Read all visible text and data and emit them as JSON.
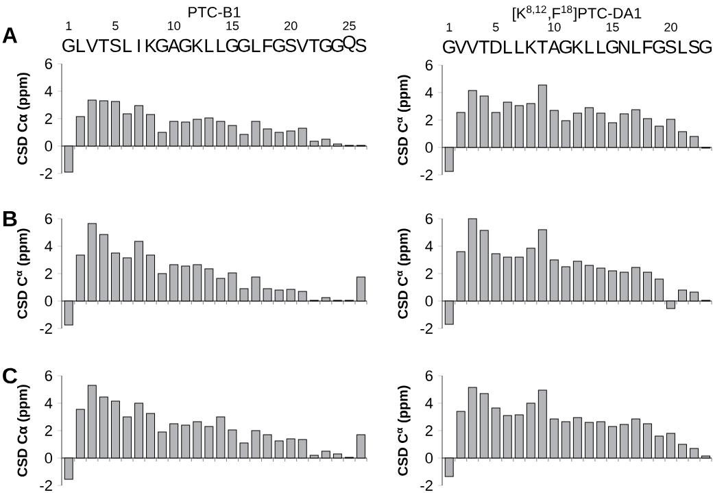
{
  "chart_data": [
    {
      "type": "bar",
      "title": "PTC-B1",
      "ylabel": "CSD Cα (ppm)",
      "annotations": [
        "A"
      ],
      "color": "#b4b5b9",
      "categories": [
        "G",
        "L",
        "V",
        "T",
        "S",
        "L",
        "I",
        "K",
        "G",
        "A",
        "G",
        "K",
        "L",
        "L",
        "G",
        "G",
        "L",
        "F",
        "G",
        "S",
        "V",
        "T",
        "G",
        "G",
        "Q",
        "S"
      ],
      "values": [
        -1.9,
        2.15,
        3.35,
        3.3,
        3.25,
        2.35,
        2.95,
        2.3,
        1.0,
        1.8,
        1.75,
        1.95,
        2.05,
        1.8,
        1.5,
        0.85,
        1.8,
        1.25,
        1.0,
        1.1,
        1.3,
        0.35,
        0.5,
        0.15,
        0.05,
        0.05
      ],
      "ylim": [
        -2,
        6
      ],
      "yticks": [
        -2,
        0,
        2,
        4,
        6
      ],
      "x2lim": [
        0.4,
        26.5
      ],
      "x2ticks": [
        1,
        5,
        10,
        15,
        20,
        25
      ]
    },
    {
      "type": "bar",
      "title": "[K$^{8,12}$,F$^{18}$]PTC-DA1",
      "ylabel": "CSD C$^{α}$ (ppm)",
      "color": "#b4b5b9",
      "categories": [
        "G",
        "V",
        "V",
        "T",
        "D",
        "L",
        "L",
        "K",
        "T",
        "A",
        "G",
        "K",
        "L",
        "L",
        "G",
        "N",
        "L",
        "F",
        "G",
        "S",
        "L",
        "S",
        "G"
      ],
      "values": [
        -1.75,
        2.55,
        4.15,
        3.75,
        2.55,
        3.3,
        3.05,
        3.2,
        4.55,
        2.7,
        1.95,
        2.5,
        2.9,
        2.5,
        1.8,
        2.45,
        2.75,
        2.1,
        1.55,
        2.05,
        1.15,
        0.8,
        -0.05
      ],
      "ylim": [
        -2,
        6
      ],
      "yticks": [
        -2,
        0,
        2,
        4,
        6
      ],
      "x2lim": [
        0.4,
        23.5
      ],
      "x2ticks": [
        1,
        5,
        10,
        15,
        20
      ]
    },
    {
      "type": "bar",
      "ylabel": "CSD C$^{α}$ (ppm)",
      "annotations": [
        "B"
      ],
      "color": "#b4b5b9",
      "tick_labels": "y",
      "categories": [
        null,
        null,
        null,
        null,
        null,
        null,
        null,
        null,
        null,
        null,
        null,
        null,
        null,
        null,
        null,
        null,
        null,
        null,
        null,
        null,
        null,
        null,
        null,
        null,
        null,
        null
      ],
      "values": [
        -1.75,
        3.35,
        5.65,
        4.85,
        3.5,
        3.15,
        4.35,
        3.35,
        2.0,
        2.65,
        2.55,
        2.65,
        2.35,
        1.65,
        2.05,
        0.9,
        1.75,
        0.9,
        0.8,
        0.85,
        0.7,
        0.05,
        0.25,
        0.05,
        0.05,
        1.75
      ],
      "ylim": [
        -2,
        6
      ],
      "yticks": [
        -2,
        0,
        2,
        4,
        6
      ]
    },
    {
      "type": "bar",
      "ylabel": "CSD C$^{α}$ (ppm)",
      "color": "#b4b5b9",
      "tick_labels": "y",
      "categories": [
        null,
        null,
        null,
        null,
        null,
        null,
        null,
        null,
        null,
        null,
        null,
        null,
        null,
        null,
        null,
        null,
        null,
        null,
        null,
        null,
        null,
        null,
        null
      ],
      "values": [
        -1.7,
        3.6,
        6.0,
        5.15,
        3.45,
        3.2,
        3.2,
        3.85,
        5.2,
        3.0,
        2.5,
        2.9,
        2.6,
        2.4,
        2.2,
        2.1,
        2.45,
        2.1,
        1.6,
        -0.55,
        0.8,
        0.65,
        0.05
      ],
      "ylim": [
        -2,
        6
      ],
      "yticks": [
        -2,
        0,
        2,
        4,
        6
      ]
    },
    {
      "type": "bar",
      "ylabel": "CSD Cα (ppm)",
      "annotations": [
        "C"
      ],
      "color": "#b4b5b9",
      "tick_labels": "y",
      "categories": [
        null,
        null,
        null,
        null,
        null,
        null,
        null,
        null,
        null,
        null,
        null,
        null,
        null,
        null,
        null,
        null,
        null,
        null,
        null,
        null,
        null,
        null,
        null,
        null,
        null,
        null
      ],
      "values": [
        -1.55,
        3.55,
        5.3,
        4.45,
        4.15,
        3.0,
        4.0,
        3.25,
        1.9,
        2.5,
        2.4,
        2.65,
        2.3,
        3.0,
        2.05,
        1.1,
        2.0,
        1.7,
        1.25,
        1.4,
        1.35,
        0.2,
        0.5,
        0.3,
        0.05,
        1.7
      ],
      "ylim": [
        -2,
        6
      ],
      "yticks": [
        -2,
        0,
        2,
        4,
        6
      ]
    },
    {
      "type": "bar",
      "ylabel": "CSD C$^{α}$ (ppm)",
      "color": "#b4b5b9",
      "tick_labels": "y",
      "categories": [
        null,
        null,
        null,
        null,
        null,
        null,
        null,
        null,
        null,
        null,
        null,
        null,
        null,
        null,
        null,
        null,
        null,
        null,
        null,
        null,
        null,
        null,
        null
      ],
      "values": [
        -1.35,
        3.4,
        5.15,
        4.7,
        3.65,
        3.1,
        3.15,
        4.0,
        4.95,
        2.85,
        2.65,
        2.95,
        2.6,
        2.65,
        2.3,
        2.45,
        2.85,
        2.5,
        1.6,
        1.8,
        1.0,
        0.7,
        0.15
      ],
      "ylim": [
        -2,
        6
      ],
      "yticks": [
        -2,
        0,
        2,
        4,
        6
      ]
    }
  ]
}
